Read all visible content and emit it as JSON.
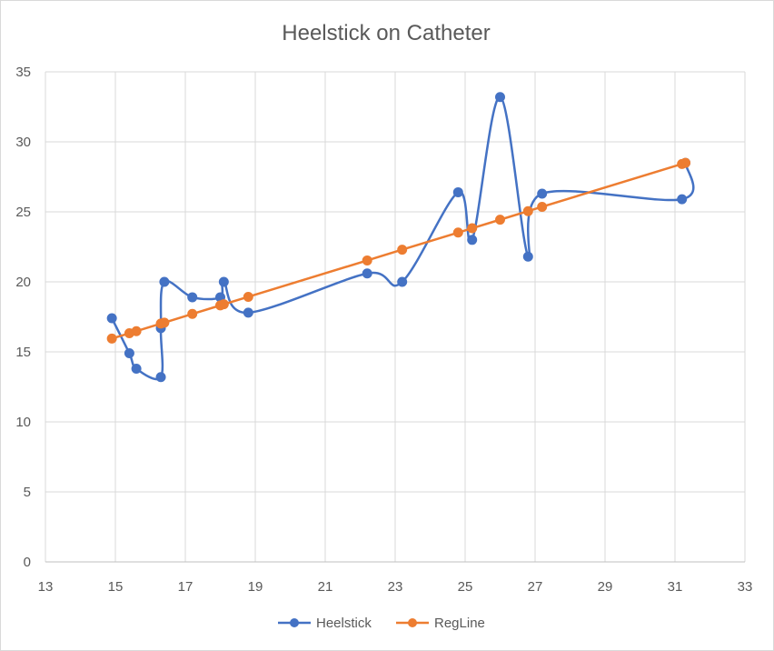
{
  "chart_data": {
    "type": "scatter",
    "title": "Heelstick on Catheter",
    "xlabel": "",
    "ylabel": "",
    "xlim": [
      13,
      33
    ],
    "ylim": [
      0,
      35
    ],
    "x_ticks": [
      "13",
      "15",
      "17",
      "19",
      "21",
      "23",
      "25",
      "27",
      "29",
      "31",
      "33"
    ],
    "y_ticks": [
      "0",
      "5",
      "10",
      "15",
      "20",
      "25",
      "30",
      "35"
    ],
    "grid": true,
    "legend_position": "bottom",
    "series": [
      {
        "name": "Heelstick",
        "color": "#4472C4",
        "line": "smooth",
        "marker": "circle",
        "points": [
          [
            14.9,
            17.4
          ],
          [
            15.4,
            14.9
          ],
          [
            15.6,
            13.8
          ],
          [
            16.3,
            13.2
          ],
          [
            16.3,
            16.7
          ],
          [
            16.4,
            20.0
          ],
          [
            17.2,
            18.9
          ],
          [
            18.0,
            18.9
          ],
          [
            18.1,
            20.0
          ],
          [
            18.8,
            17.8
          ],
          [
            22.2,
            20.6
          ],
          [
            23.2,
            20.0
          ],
          [
            24.8,
            26.4
          ],
          [
            25.2,
            23.0
          ],
          [
            26.0,
            33.2
          ],
          [
            26.8,
            21.8
          ],
          [
            27.2,
            26.3
          ],
          [
            31.2,
            25.9
          ],
          [
            31.3,
            28.5
          ]
        ]
      },
      {
        "name": "RegLine",
        "color": "#ED7D31",
        "line": "straight",
        "marker": "circle",
        "points": [
          [
            14.9,
            15.95
          ],
          [
            15.4,
            16.33
          ],
          [
            15.6,
            16.48
          ],
          [
            16.3,
            17.02
          ],
          [
            16.4,
            17.09
          ],
          [
            17.2,
            17.71
          ],
          [
            18.0,
            18.32
          ],
          [
            18.1,
            18.4
          ],
          [
            18.8,
            18.93
          ],
          [
            22.2,
            21.53
          ],
          [
            23.2,
            22.3
          ],
          [
            24.8,
            23.52
          ],
          [
            25.2,
            23.83
          ],
          [
            26.0,
            24.44
          ],
          [
            26.8,
            25.05
          ],
          [
            27.2,
            25.36
          ],
          [
            31.2,
            28.42
          ],
          [
            31.3,
            28.5
          ]
        ]
      }
    ]
  }
}
